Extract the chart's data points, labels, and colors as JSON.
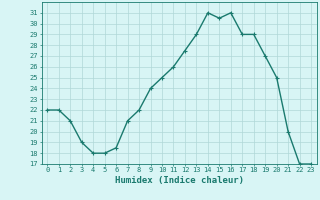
{
  "x": [
    0,
    1,
    2,
    3,
    4,
    5,
    6,
    7,
    8,
    9,
    10,
    11,
    12,
    13,
    14,
    15,
    16,
    17,
    18,
    19,
    20,
    21,
    22,
    23
  ],
  "y": [
    22,
    22,
    21,
    19,
    18,
    18,
    18.5,
    21,
    22,
    24,
    25,
    26,
    27.5,
    29,
    31,
    30.5,
    31,
    29,
    29,
    27,
    25,
    20,
    17,
    17
  ],
  "line_color": "#1a7a6e",
  "marker": "+",
  "marker_size": 3,
  "linewidth": 1.0,
  "bg_color": "#d8f5f5",
  "grid_color": "#b0d8d8",
  "xlabel": "Humidex (Indice chaleur)",
  "xlim": [
    -0.5,
    23.5
  ],
  "ylim": [
    17,
    32
  ],
  "yticks": [
    17,
    18,
    19,
    20,
    21,
    22,
    23,
    24,
    25,
    26,
    27,
    28,
    29,
    30,
    31
  ],
  "xticks": [
    0,
    1,
    2,
    3,
    4,
    5,
    6,
    7,
    8,
    9,
    10,
    11,
    12,
    13,
    14,
    15,
    16,
    17,
    18,
    19,
    20,
    21,
    22,
    23
  ],
  "tick_fontsize": 5,
  "xlabel_fontsize": 6.5,
  "tick_color": "#1a7a6e",
  "axis_color": "#1a7a6e"
}
